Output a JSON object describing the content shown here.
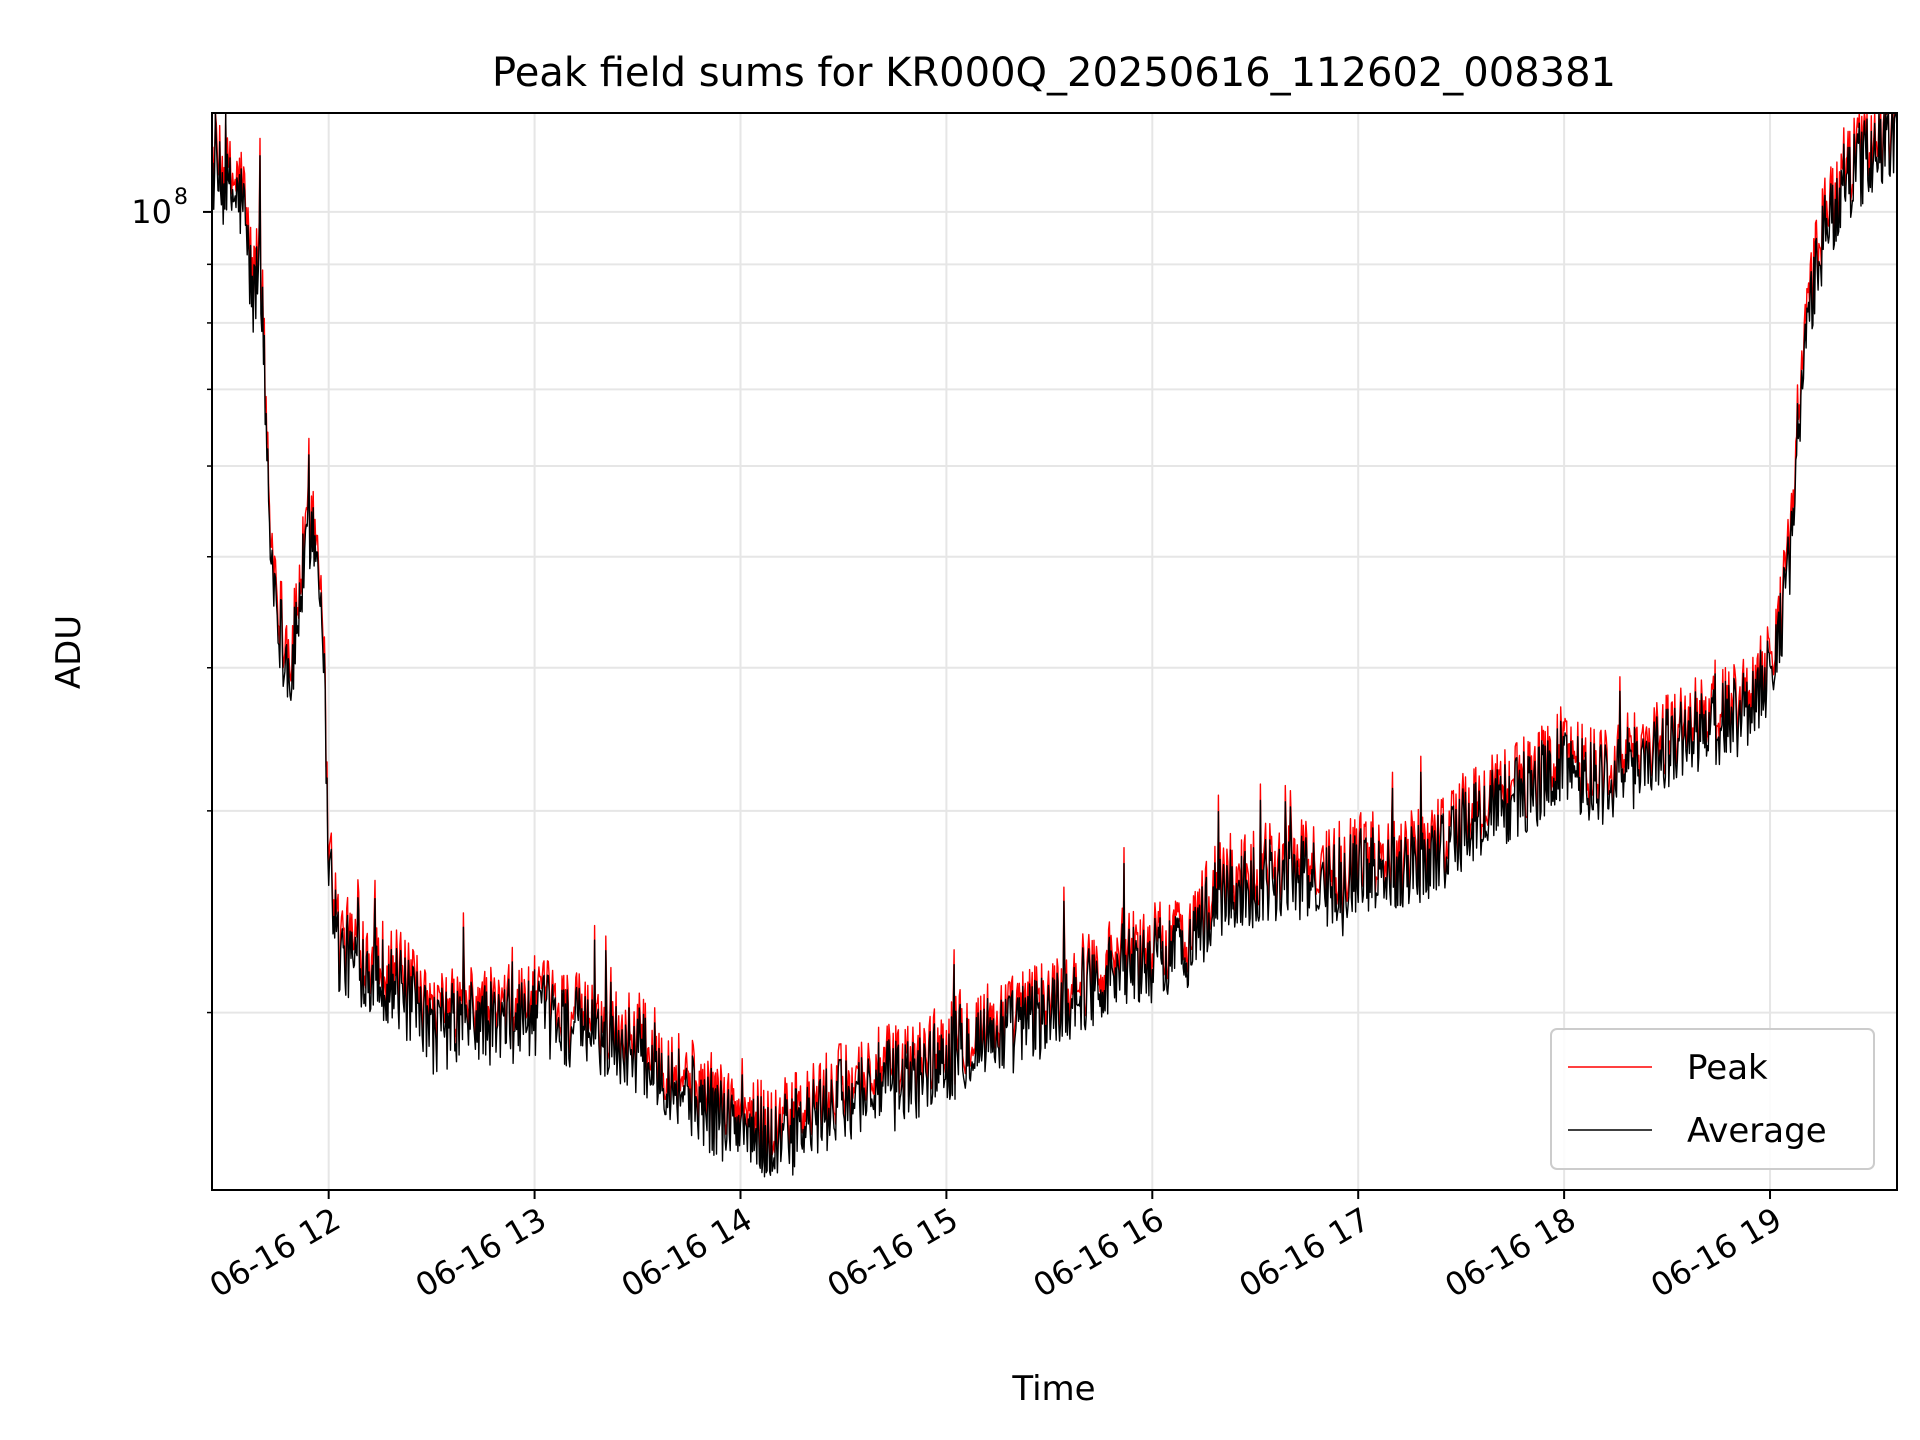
{
  "chart_data": {
    "type": "line",
    "title": "Peak field sums for KR000Q_20250616_112602_008381",
    "xlabel": "Time",
    "ylabel": "ADU",
    "yscale": "log",
    "ylim": [
      14000000,
      122000000
    ],
    "xlim": [
      "2025-06-16 11:26",
      "2025-06-16 19:37"
    ],
    "x_ticks": [
      {
        "time": "2025-06-16 12:00",
        "label": "06-16 12"
      },
      {
        "time": "2025-06-16 13:00",
        "label": "06-16 13"
      },
      {
        "time": "2025-06-16 14:00",
        "label": "06-16 14"
      },
      {
        "time": "2025-06-16 15:00",
        "label": "06-16 15"
      },
      {
        "time": "2025-06-16 16:00",
        "label": "06-16 16"
      },
      {
        "time": "2025-06-16 17:00",
        "label": "06-16 17"
      },
      {
        "time": "2025-06-16 18:00",
        "label": "06-16 18"
      },
      {
        "time": "2025-06-16 19:00",
        "label": "06-16 19"
      }
    ],
    "y_major_ticks": [
      {
        "value": 100000000,
        "base": "10",
        "exp": "8"
      }
    ],
    "y_minor_ticks": [
      20000000,
      30000000,
      40000000,
      50000000,
      60000000,
      70000000,
      80000000,
      90000000
    ],
    "grid": true,
    "legend_position": "lower-right",
    "series": [
      {
        "name": "Peak",
        "color": "#ff0000",
        "x": [
          "2025-06-16 11:26",
          "2025-06-16 11:30",
          "2025-06-16 11:35",
          "2025-06-16 11:38",
          "2025-06-16 11:40",
          "2025-06-16 11:43",
          "2025-06-16 11:46",
          "2025-06-16 11:49",
          "2025-06-16 11:52",
          "2025-06-16 11:55",
          "2025-06-16 11:58",
          "2025-06-16 12:00",
          "2025-06-16 12:03",
          "2025-06-16 12:10",
          "2025-06-16 12:20",
          "2025-06-16 12:30",
          "2025-06-16 12:40",
          "2025-06-16 12:50",
          "2025-06-16 13:00",
          "2025-06-16 13:10",
          "2025-06-16 13:20",
          "2025-06-16 13:30",
          "2025-06-16 13:40",
          "2025-06-16 13:50",
          "2025-06-16 14:00",
          "2025-06-16 14:10",
          "2025-06-16 14:20",
          "2025-06-16 14:30",
          "2025-06-16 14:40",
          "2025-06-16 14:50",
          "2025-06-16 15:00",
          "2025-06-16 15:10",
          "2025-06-16 15:20",
          "2025-06-16 15:30",
          "2025-06-16 15:40",
          "2025-06-16 15:50",
          "2025-06-16 16:00",
          "2025-06-16 16:10",
          "2025-06-16 16:20",
          "2025-06-16 16:30",
          "2025-06-16 16:40",
          "2025-06-16 16:50",
          "2025-06-16 17:00",
          "2025-06-16 17:10",
          "2025-06-16 17:20",
          "2025-06-16 17:30",
          "2025-06-16 17:40",
          "2025-06-16 17:50",
          "2025-06-16 18:00",
          "2025-06-16 18:10",
          "2025-06-16 18:20",
          "2025-06-16 18:30",
          "2025-06-16 18:40",
          "2025-06-16 18:50",
          "2025-06-16 19:00",
          "2025-06-16 19:05",
          "2025-06-16 19:10",
          "2025-06-16 19:15",
          "2025-06-16 19:20",
          "2025-06-16 19:25",
          "2025-06-16 19:30",
          "2025-06-16 19:37"
        ],
        "values": [
          110000000,
          106000000,
          104000000,
          85000000,
          95000000,
          52000000,
          44000000,
          40000000,
          48000000,
          55000000,
          48000000,
          28000000,
          23000000,
          22500000,
          21500000,
          19500000,
          20000000,
          19800000,
          20300000,
          19800000,
          19300000,
          18800000,
          17800000,
          16800000,
          16100000,
          15700000,
          16300000,
          17100000,
          17600000,
          17800000,
          18600000,
          19300000,
          19600000,
          20300000,
          21300000,
          22200000,
          22600000,
          23200000,
          25800000,
          26300000,
          27000000,
          26200000,
          27200000,
          27200000,
          27700000,
          29200000,
          30700000,
          31700000,
          33700000,
          32200000,
          33200000,
          34700000,
          35700000,
          36700000,
          40000000,
          48000000,
          78000000,
          95000000,
          106000000,
          111000000,
          115000000,
          120000000
        ]
      },
      {
        "name": "Average",
        "color": "#000000",
        "x": [
          "2025-06-16 11:26",
          "2025-06-16 11:30",
          "2025-06-16 11:35",
          "2025-06-16 11:38",
          "2025-06-16 11:40",
          "2025-06-16 11:43",
          "2025-06-16 11:46",
          "2025-06-16 11:49",
          "2025-06-16 11:52",
          "2025-06-16 11:55",
          "2025-06-16 11:58",
          "2025-06-16 12:00",
          "2025-06-16 12:03",
          "2025-06-16 12:10",
          "2025-06-16 12:20",
          "2025-06-16 12:30",
          "2025-06-16 12:40",
          "2025-06-16 12:50",
          "2025-06-16 13:00",
          "2025-06-16 13:10",
          "2025-06-16 13:20",
          "2025-06-16 13:30",
          "2025-06-16 13:40",
          "2025-06-16 13:50",
          "2025-06-16 14:00",
          "2025-06-16 14:10",
          "2025-06-16 14:20",
          "2025-06-16 14:30",
          "2025-06-16 14:40",
          "2025-06-16 14:50",
          "2025-06-16 15:00",
          "2025-06-16 15:10",
          "2025-06-16 15:20",
          "2025-06-16 15:30",
          "2025-06-16 15:40",
          "2025-06-16 15:50",
          "2025-06-16 16:00",
          "2025-06-16 16:10",
          "2025-06-16 16:20",
          "2025-06-16 16:30",
          "2025-06-16 16:40",
          "2025-06-16 16:50",
          "2025-06-16 17:00",
          "2025-06-16 17:10",
          "2025-06-16 17:20",
          "2025-06-16 17:30",
          "2025-06-16 17:40",
          "2025-06-16 17:50",
          "2025-06-16 18:00",
          "2025-06-16 18:10",
          "2025-06-16 18:20",
          "2025-06-16 18:30",
          "2025-06-16 18:40",
          "2025-06-16 18:50",
          "2025-06-16 19:00",
          "2025-06-16 19:05",
          "2025-06-16 19:10",
          "2025-06-16 19:15",
          "2025-06-16 19:20",
          "2025-06-16 19:25",
          "2025-06-16 19:30",
          "2025-06-16 19:37"
        ],
        "values": [
          108000000,
          104000000,
          102000000,
          83000000,
          93000000,
          51000000,
          43000000,
          39000000,
          47000000,
          54000000,
          47000000,
          27500000,
          22500000,
          22000000,
          21000000,
          19200000,
          19700000,
          19500000,
          20000000,
          19500000,
          19000000,
          18500000,
          17500000,
          16500000,
          15800000,
          15400000,
          16000000,
          16800000,
          17300000,
          17500000,
          18300000,
          19000000,
          19300000,
          20000000,
          21000000,
          21800000,
          22200000,
          22800000,
          25300000,
          25800000,
          26500000,
          25700000,
          26700000,
          26700000,
          27200000,
          28700000,
          30200000,
          31200000,
          33200000,
          31700000,
          32700000,
          34200000,
          35200000,
          36200000,
          39400000,
          47000000,
          76000000,
          93000000,
          104000000,
          109000000,
          113000000,
          118000000
        ]
      }
    ]
  }
}
